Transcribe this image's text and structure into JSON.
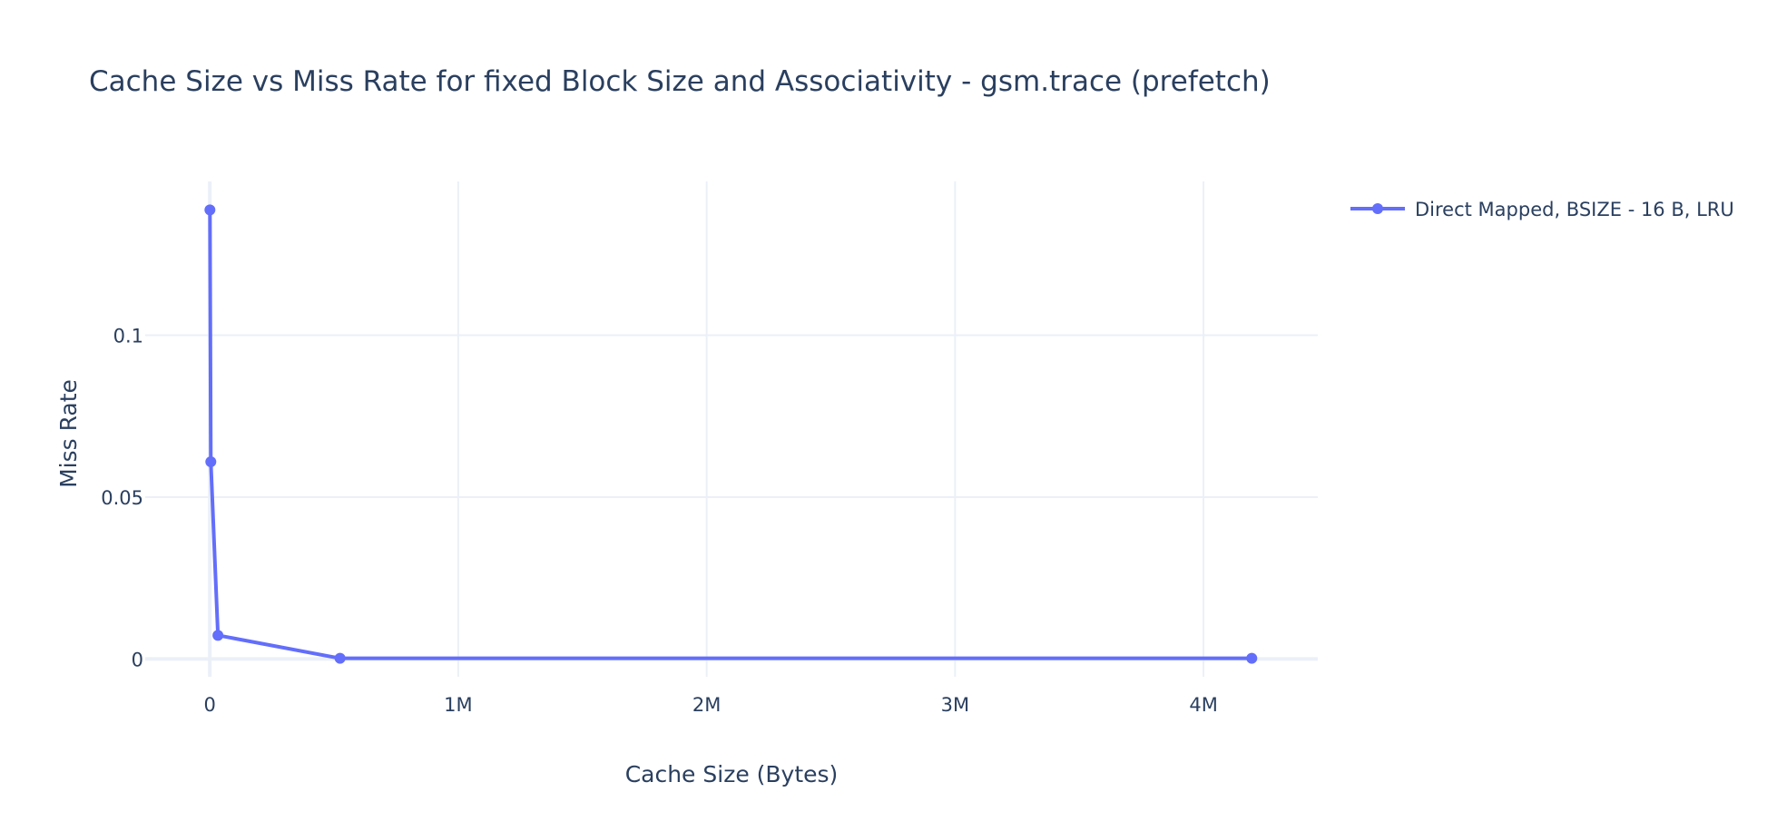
{
  "chart_data": {
    "type": "line",
    "title": "Cache Size vs Miss Rate for fixed Block Size and Associativity - gsm.trace (prefetch)",
    "xlabel": "Cache Size (Bytes)",
    "ylabel": "Miss Rate",
    "xlim": [
      -260000,
      4460000
    ],
    "ylim": [
      -0.0055,
      0.1475
    ],
    "x_ticks": [
      {
        "value": 0,
        "label": "0"
      },
      {
        "value": 1000000,
        "label": "1M"
      },
      {
        "value": 2000000,
        "label": "2M"
      },
      {
        "value": 3000000,
        "label": "3M"
      },
      {
        "value": 4000000,
        "label": "4M"
      }
    ],
    "y_ticks": [
      {
        "value": 0,
        "label": "0"
      },
      {
        "value": 0.05,
        "label": "0.05"
      },
      {
        "value": 0.1,
        "label": "0.1"
      }
    ],
    "grid": true,
    "legend_position": "top-right",
    "series": [
      {
        "name": "Direct Mapped, BSIZE - 16 B, LRU",
        "color": "#636efa",
        "mode": "lines+markers",
        "x": [
          512,
          4096,
          32768,
          524288,
          4194304
        ],
        "y": [
          0.1387,
          0.0609,
          0.0073,
          0.0002,
          0.0002
        ]
      }
    ]
  }
}
